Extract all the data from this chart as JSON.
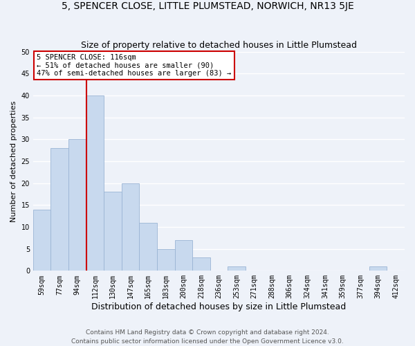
{
  "title": "5, SPENCER CLOSE, LITTLE PLUMSTEAD, NORWICH, NR13 5JE",
  "subtitle": "Size of property relative to detached houses in Little Plumstead",
  "xlabel": "Distribution of detached houses by size in Little Plumstead",
  "ylabel": "Number of detached properties",
  "bar_labels": [
    "59sqm",
    "77sqm",
    "94sqm",
    "112sqm",
    "130sqm",
    "147sqm",
    "165sqm",
    "183sqm",
    "200sqm",
    "218sqm",
    "236sqm",
    "253sqm",
    "271sqm",
    "288sqm",
    "306sqm",
    "324sqm",
    "341sqm",
    "359sqm",
    "377sqm",
    "394sqm",
    "412sqm"
  ],
  "bar_values": [
    14,
    28,
    30,
    40,
    18,
    20,
    11,
    5,
    7,
    3,
    0,
    1,
    0,
    0,
    0,
    0,
    0,
    0,
    0,
    1,
    0
  ],
  "bar_color": "#c8d9ee",
  "bar_edge_color": "#9ab4d4",
  "vline_color": "#cc0000",
  "vline_bar_index": 3,
  "annotation_text": "5 SPENCER CLOSE: 116sqm\n← 51% of detached houses are smaller (90)\n47% of semi-detached houses are larger (83) →",
  "annotation_box_color": "white",
  "annotation_box_edge": "#cc0000",
  "ylim": [
    0,
    50
  ],
  "yticks": [
    0,
    5,
    10,
    15,
    20,
    25,
    30,
    35,
    40,
    45,
    50
  ],
  "footer1": "Contains HM Land Registry data © Crown copyright and database right 2024.",
  "footer2": "Contains public sector information licensed under the Open Government Licence v3.0.",
  "bg_color": "#eef2f9",
  "grid_color": "#ffffff",
  "title_fontsize": 10,
  "subtitle_fontsize": 9,
  "xlabel_fontsize": 9,
  "ylabel_fontsize": 8,
  "tick_fontsize": 7,
  "annotation_fontsize": 7.5,
  "footer_fontsize": 6.5
}
